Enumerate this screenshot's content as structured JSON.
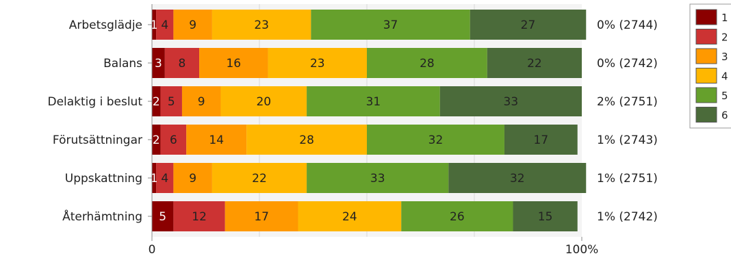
{
  "chart_data": {
    "type": "bar",
    "orientation": "horizontal",
    "stacked": true,
    "categories": [
      "Arbetsglädje",
      "Balans",
      "Delaktig i beslut",
      "Förutsättningar",
      "Uppskattning",
      "Återhämtning"
    ],
    "series": [
      {
        "name": "1",
        "color": "#8b0000",
        "values": [
          1,
          3,
          2,
          2,
          1,
          5
        ],
        "labels": [
          "1",
          "3",
          "2",
          "2",
          "1",
          "5"
        ]
      },
      {
        "name": "2",
        "color": "#cc3333",
        "values": [
          4,
          8,
          5,
          6,
          4,
          12
        ],
        "labels": [
          "4",
          "8",
          "5",
          "6",
          "4",
          "12"
        ]
      },
      {
        "name": "3",
        "color": "#ff9900",
        "values": [
          9,
          16,
          9,
          14,
          9,
          17
        ],
        "labels": [
          "9",
          "16",
          "9",
          "14",
          "9",
          "17"
        ]
      },
      {
        "name": "4",
        "color": "#ffb700",
        "values": [
          23,
          23,
          20,
          28,
          22,
          24
        ],
        "labels": [
          "23",
          "23",
          "20",
          "28",
          "22",
          "24"
        ]
      },
      {
        "name": "5",
        "color": "#66a02c",
        "values": [
          37,
          28,
          31,
          32,
          33,
          26
        ],
        "labels": [
          "37",
          "28",
          "31",
          "32",
          "33",
          "26"
        ]
      },
      {
        "name": "6",
        "color": "#4b6b3a",
        "values": [
          27,
          22,
          33,
          17,
          32,
          15
        ],
        "labels": [
          "27",
          "22",
          "33",
          "17",
          "32",
          "15"
        ]
      }
    ],
    "annotations": [
      "0% (2744)",
      "0% (2742)",
      "2% (2751)",
      "1% (2743)",
      "1% (2751)",
      "1% (2742)"
    ],
    "x_ticks": [
      "0",
      "100%"
    ],
    "xlim": [
      0,
      100
    ],
    "legend_position": "right"
  }
}
